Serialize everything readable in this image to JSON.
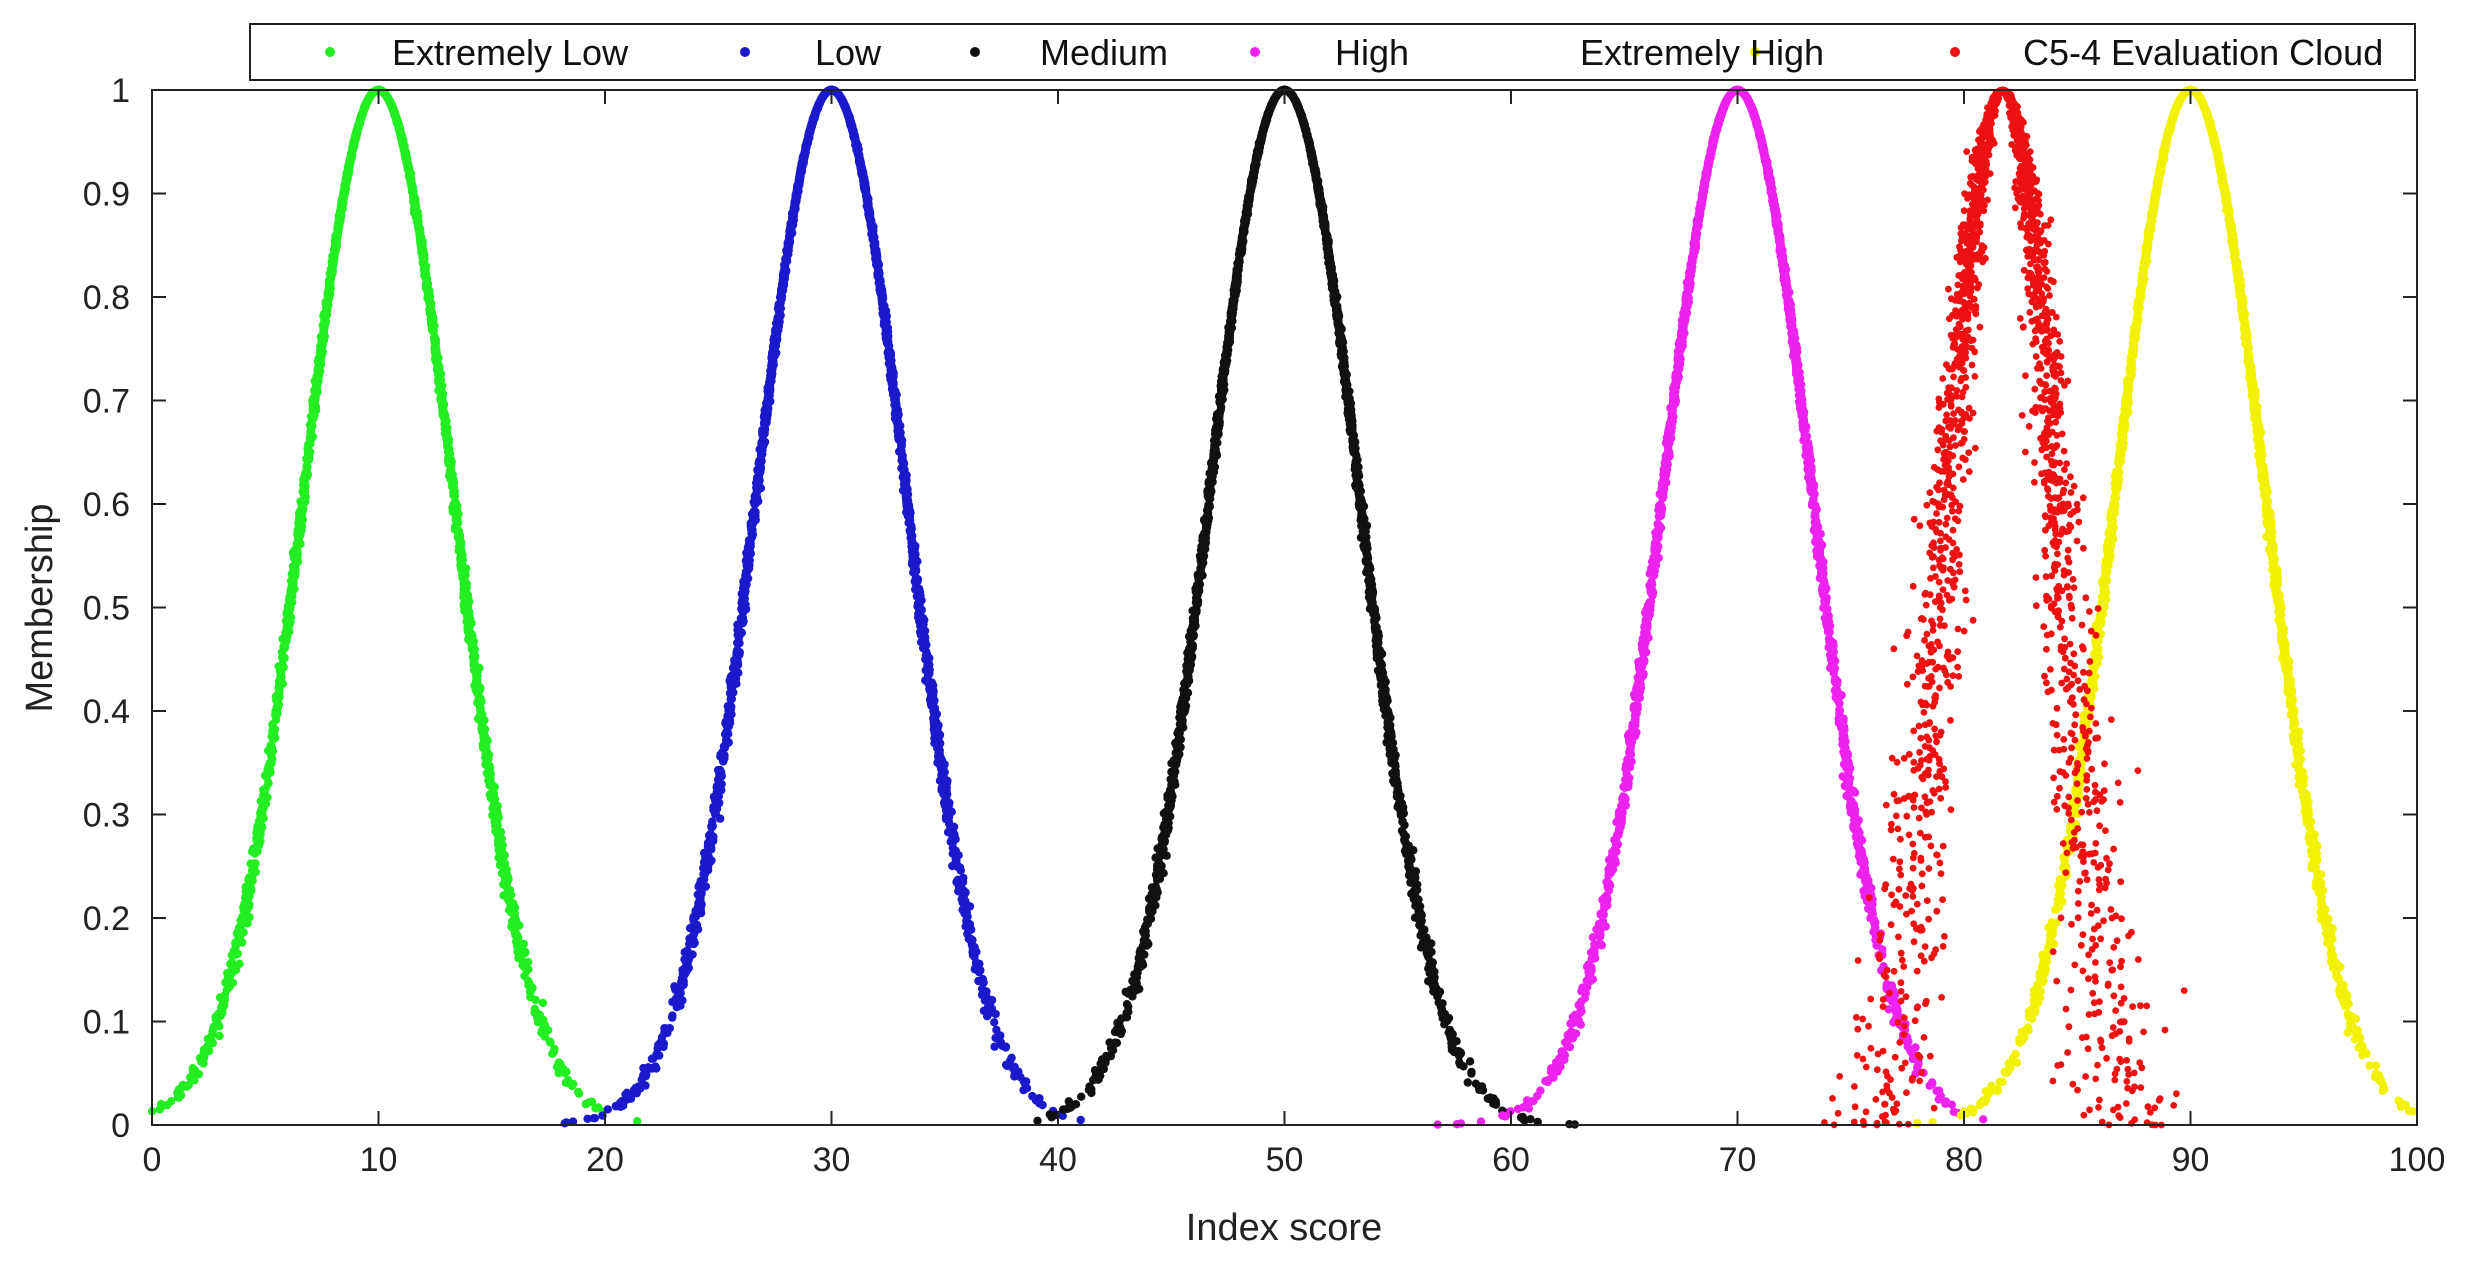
{
  "chart_data": {
    "type": "scatter",
    "xlabel": "Index score",
    "ylabel": "Membership",
    "xlim": [
      0,
      100
    ],
    "ylim": [
      0,
      1
    ],
    "x_ticks": [
      0,
      10,
      20,
      30,
      40,
      50,
      60,
      70,
      80,
      90,
      100
    ],
    "y_ticks": [
      0,
      0.1,
      0.2,
      0.3,
      0.4,
      0.5,
      0.6,
      0.7,
      0.8,
      0.9,
      1
    ],
    "x_tick_labels": [
      "0",
      "10",
      "20",
      "30",
      "40",
      "50",
      "60",
      "70",
      "80",
      "90",
      "100"
    ],
    "y_tick_labels": [
      "0",
      "0.1",
      "0.2",
      "0.3",
      "0.4",
      "0.5",
      "0.6",
      "0.7",
      "0.8",
      "0.9",
      "1"
    ],
    "grid": false,
    "legend_position": "top",
    "series": [
      {
        "name": "Extremely Low",
        "color": "#22ee22",
        "Ex": 10,
        "En": 3.33,
        "He": 0.05,
        "kind": "concept"
      },
      {
        "name": "Low",
        "color": "#1a1acc",
        "Ex": 30,
        "En": 3.33,
        "He": 0.05,
        "kind": "concept"
      },
      {
        "name": "Medium",
        "color": "#111111",
        "Ex": 50,
        "En": 3.33,
        "He": 0.05,
        "kind": "concept"
      },
      {
        "name": "High",
        "color": "#ee22ee",
        "Ex": 70,
        "En": 3.33,
        "He": 0.05,
        "kind": "concept"
      },
      {
        "name": "Extremely High",
        "color": "#f2f200",
        "Ex": 90,
        "En": 3.33,
        "He": 0.05,
        "kind": "concept"
      },
      {
        "name": "C5-4 Evaluation Cloud",
        "color": "#ee1111",
        "Ex": 81.7,
        "En": 2.4,
        "He": 0.5,
        "kind": "evaluation"
      }
    ]
  }
}
